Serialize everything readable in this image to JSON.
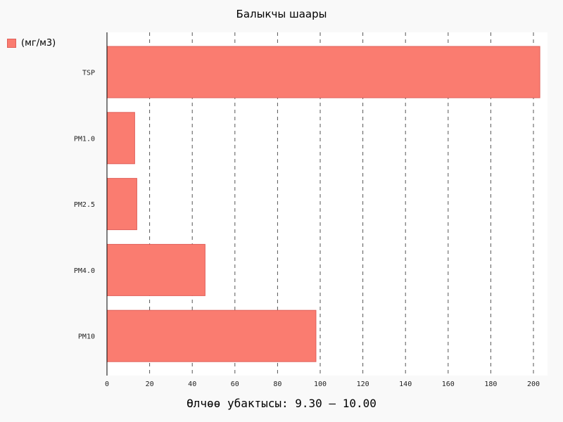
{
  "chart_data": {
    "type": "bar",
    "orientation": "horizontal",
    "title": "Балыкчы шаары",
    "xlabel": "Өлчөө убактысы: 9.30 – 10.00",
    "ylabel": "",
    "categories": [
      "TSP",
      "PM1.0",
      "PM2.5",
      "PM4.0",
      "PM10"
    ],
    "series": [
      {
        "name": "(мг/м3)",
        "values": [
          203,
          13,
          14,
          46,
          98
        ],
        "color": "#fa7c70"
      }
    ],
    "xlim": [
      0,
      205
    ],
    "xticks": [
      0,
      20,
      40,
      60,
      80,
      100,
      120,
      140,
      160,
      180,
      200
    ],
    "grid": "vertical dashed",
    "legend_position": "top-left"
  }
}
